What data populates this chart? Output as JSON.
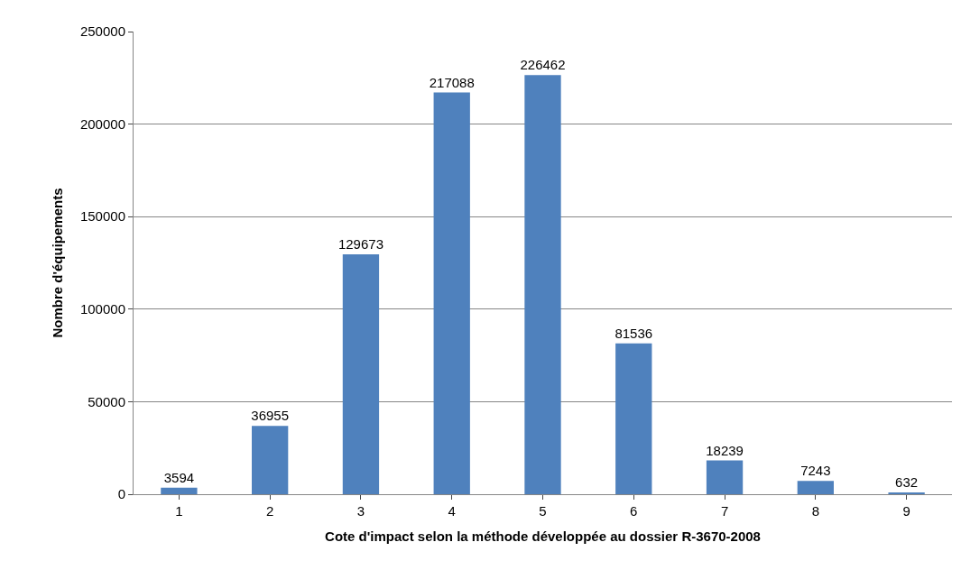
{
  "chart_data": {
    "type": "bar",
    "xlabel": "Cote d'impact selon la méthode développée au dossier R-3670-2008",
    "ylabel": "Nombre d'équipements",
    "categories": [
      "1",
      "2",
      "3",
      "4",
      "5",
      "6",
      "7",
      "8",
      "9"
    ],
    "values": [
      3594,
      36955,
      129673,
      217088,
      226462,
      81536,
      18239,
      7243,
      632
    ],
    "color": "#4f81bd",
    "ylim": [
      0,
      250000
    ],
    "yticks": [
      0,
      50000,
      100000,
      150000,
      200000,
      250000
    ],
    "grid": "y",
    "data_labels": true
  }
}
